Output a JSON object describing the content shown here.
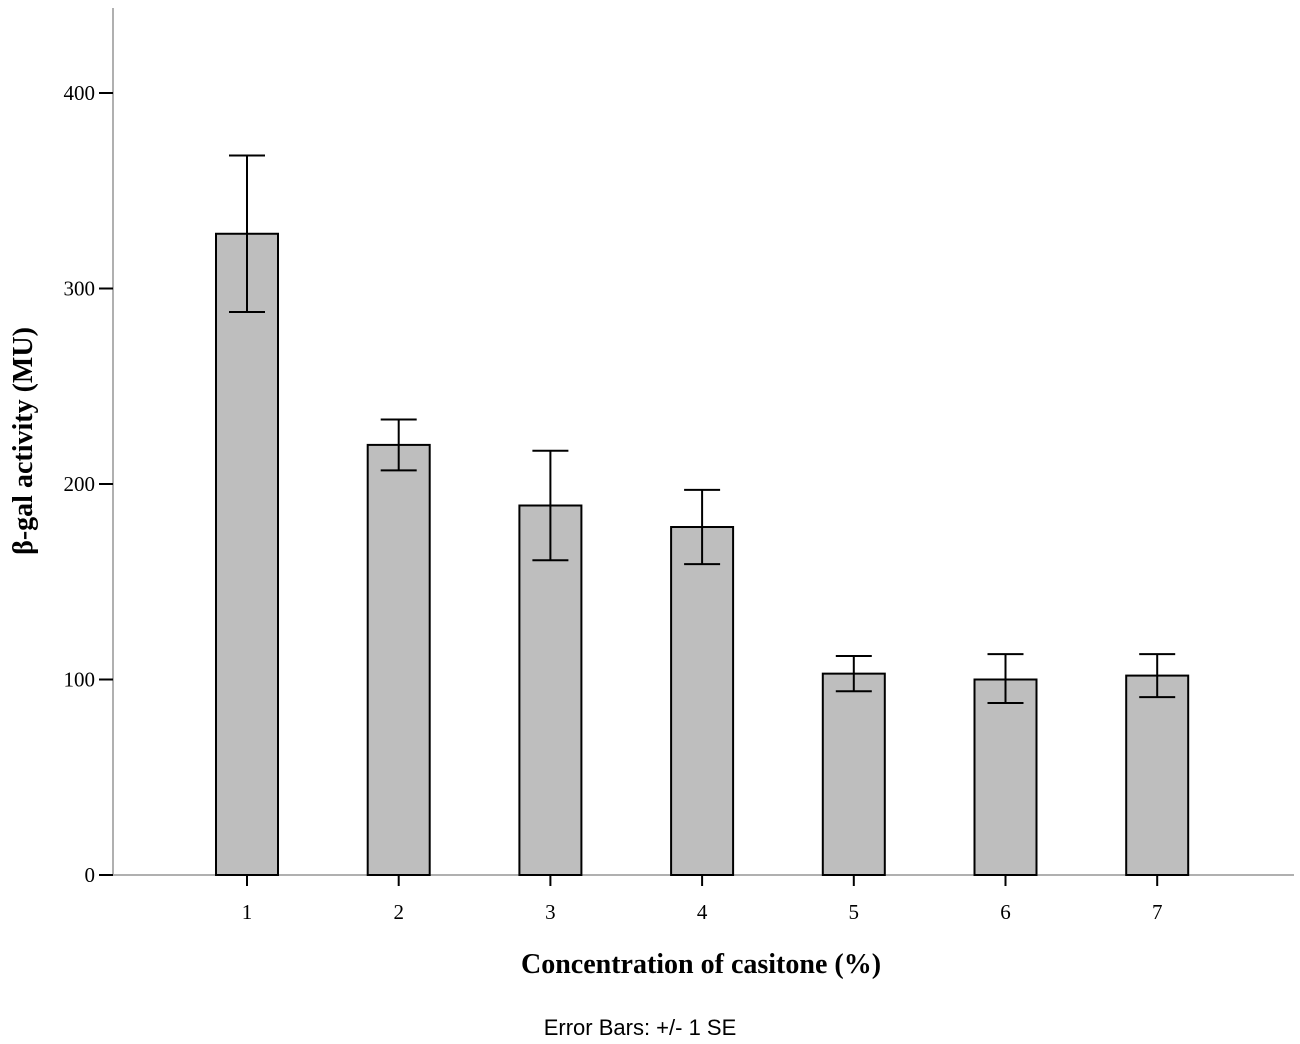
{
  "chart_data": {
    "type": "bar",
    "categories": [
      "1",
      "2",
      "3",
      "4",
      "5",
      "6",
      "7"
    ],
    "values": [
      328,
      220,
      189,
      178,
      103,
      100,
      102
    ],
    "error_upper": [
      368,
      233,
      217,
      197,
      112,
      113,
      113
    ],
    "error_lower": [
      288,
      207,
      161,
      159,
      94,
      88,
      91
    ],
    "xlabel": "Concentration of casitone (%)",
    "ylabel": "β-gal activity (MU)",
    "ylim": [
      0,
      440
    ],
    "yticks": [
      0,
      100,
      200,
      300,
      400
    ],
    "note": "Error Bars: +/- 1 SE",
    "grid": false,
    "colors": {
      "bar_fill": "#bebebe",
      "bar_stroke": "#000000",
      "axis": "#b0b0b0",
      "error_bar": "#000000"
    }
  }
}
